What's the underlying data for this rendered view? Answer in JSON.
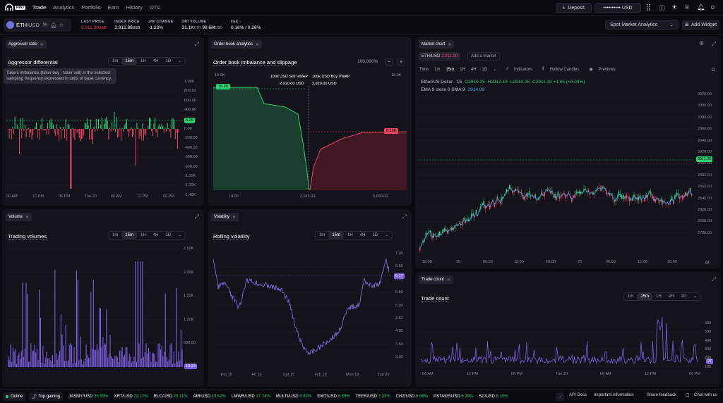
{
  "nav": {
    "logo_text": "PRO",
    "links": [
      "Trade",
      "Analytics",
      "Portfolio",
      "Earn",
      "History",
      "OTC"
    ],
    "deposit": "Deposit",
    "balance_masked": "•••••••••• USD"
  },
  "pair": {
    "base": "ETH",
    "quote": "/USD",
    "badge": "5x"
  },
  "stats": {
    "last_price_label": "LAST PRICE",
    "last_price": "2,911.30",
    "last_price_unit": "USD",
    "index_label": "INDEX PRICE",
    "index_price": "2,912.88",
    "index_unit": "USD",
    "change_label": "24H CHANGE",
    "change": "-1.23%",
    "volume_label": "24H VOLUME",
    "volume_a": "31.1K",
    "volume_a_unit": "ETH",
    "volume_b": "90.6M",
    "volume_b_unit": "USD",
    "fee_label": "FEE",
    "fee": "0.16% / 0.26%"
  },
  "toolbar": {
    "layout_select": "Spot Market Analytics",
    "add_widget": "Add Widget"
  },
  "timeframes": [
    "1m",
    "15m",
    "1H",
    "4H",
    "1D"
  ],
  "aggressor": {
    "tag": "Aggressor ratio",
    "title": "Aggressor differential",
    "tooltip": "Takers imbalance (taker buy - taker sell) in the selected sampling frequency expressed in units of base currency.",
    "yticks": [
      "1.00K",
      "800.00",
      "600.00",
      "400.00",
      "200.00",
      "0.00",
      "-200.00",
      "-400.00",
      "-600.00",
      "-800.00",
      "-1.00K",
      "-1.20K",
      "-1.40K"
    ],
    "xticks": [
      "06 AM",
      "12 PM",
      "06 PM",
      "Tue 20",
      "06 AM",
      "12 PM",
      "06 PM"
    ],
    "current": "4.26"
  },
  "orderbook": {
    "tag": "Order book analytics",
    "title": "Order book imbalance and slippage",
    "zoom": "100.000%",
    "left_top": "18.0K",
    "right_top": "18.0K",
    "sell_label": "100k USD Sell VWAP",
    "sell_value": "2,910.00",
    "sell_unit": "USD",
    "buy_label": "100k USD Buy VWAP",
    "buy_value": "2,920.00",
    "buy_unit": "USD",
    "bid_badge": "16.2K",
    "ask_badge": "9.16K",
    "xticks": [
      "10.00",
      "2,915.00",
      "5,690.00"
    ]
  },
  "market": {
    "tag": "Market chart",
    "pair": "ETH/USD",
    "pair_price": "2,911.30",
    "add_market": "Add a market",
    "time_label": "Time",
    "timeframes": [
      "1m",
      "15m",
      "1H",
      "4H",
      "1D"
    ],
    "indicators": "Indicators",
    "hollow": "Hollow Candles",
    "previews": "Previews",
    "ohlc_title": "Ether/US Dollar · 15",
    "o": "O2910.25",
    "h": "H2912.18",
    "l": "L2910.25",
    "c": "C2911.30 +1.05 (+0.04%)",
    "ema": "EMA 9 close 0 SMA 9",
    "ema_value": "2914.08",
    "yticks": [
      "3020.00",
      "3000.00",
      "2980.00",
      "2960.00",
      "2940.00",
      "2920.00",
      "2900.00",
      "2880.00",
      "2860.00",
      "2840.00",
      "2820.00",
      "2800.00",
      "2780.00"
    ],
    "price_badge": "2911.30",
    "xticks": [
      "18:00",
      "19",
      "06:00",
      "12:00",
      "18:00",
      "20",
      "06:00",
      "12:00",
      "18:00"
    ]
  },
  "volume": {
    "tag": "Volume",
    "title": "Trading volumes",
    "yticks": [
      "2.50K",
      "2.00K",
      "1.50K",
      "1.00K",
      "500.00"
    ],
    "current": "19.23"
  },
  "volatility": {
    "tag": "Volatility",
    "title": "Rolling volatility",
    "yticks": [
      "7.00",
      "6.50",
      "6.00",
      "5.50",
      "5.00",
      "4.50",
      "4.00",
      "3.50",
      "3.00"
    ],
    "xticks": [
      "Thu 15",
      "Fri 16",
      "Sat 17",
      "Feb 18",
      "Mon 19",
      "Tue 20"
    ],
    "current": "6.17"
  },
  "tradecount": {
    "tag": "Trade count",
    "title": "Trade count",
    "yticks": [
      "600",
      "500",
      "400",
      "300",
      "200",
      "100"
    ],
    "xticks": [
      "06 AM",
      "12 PM",
      "06 PM",
      "Tue 20",
      "06 AM",
      "12 PM",
      "06 PM"
    ],
    "current": "27"
  },
  "footer": {
    "online": "Online",
    "top_gaining": "Top gaining",
    "movers": [
      {
        "s": "JASMY/USD",
        "p": "35.59%"
      },
      {
        "s": "XRT/USD",
        "p": "22.17%"
      },
      {
        "s": "RLC/USD",
        "p": "20.11%"
      },
      {
        "s": "AIR/USD",
        "p": "19.62%"
      },
      {
        "s": "LMWR/USD",
        "p": "17.74%"
      },
      {
        "s": "MULTI/USD",
        "p": "8.82%"
      },
      {
        "s": "EWT/USD",
        "p": "8.59%"
      },
      {
        "s": "TEER/USD",
        "p": "7.33%"
      },
      {
        "s": "CHZ/USD",
        "p": "6.68%"
      },
      {
        "s": "PSTAKE/USD",
        "p": "6.29%"
      },
      {
        "s": "SC/USD",
        "p": "6.10%"
      }
    ],
    "api_docs": "API Docs",
    "important": "Important information",
    "feedback": "Share feedback",
    "chat": "Chat with us"
  },
  "colors": {
    "bg": "#0b0a10",
    "panel": "#14121b",
    "green": "#2fcf72",
    "red": "#e8475f",
    "purple": "#7b61e0"
  }
}
